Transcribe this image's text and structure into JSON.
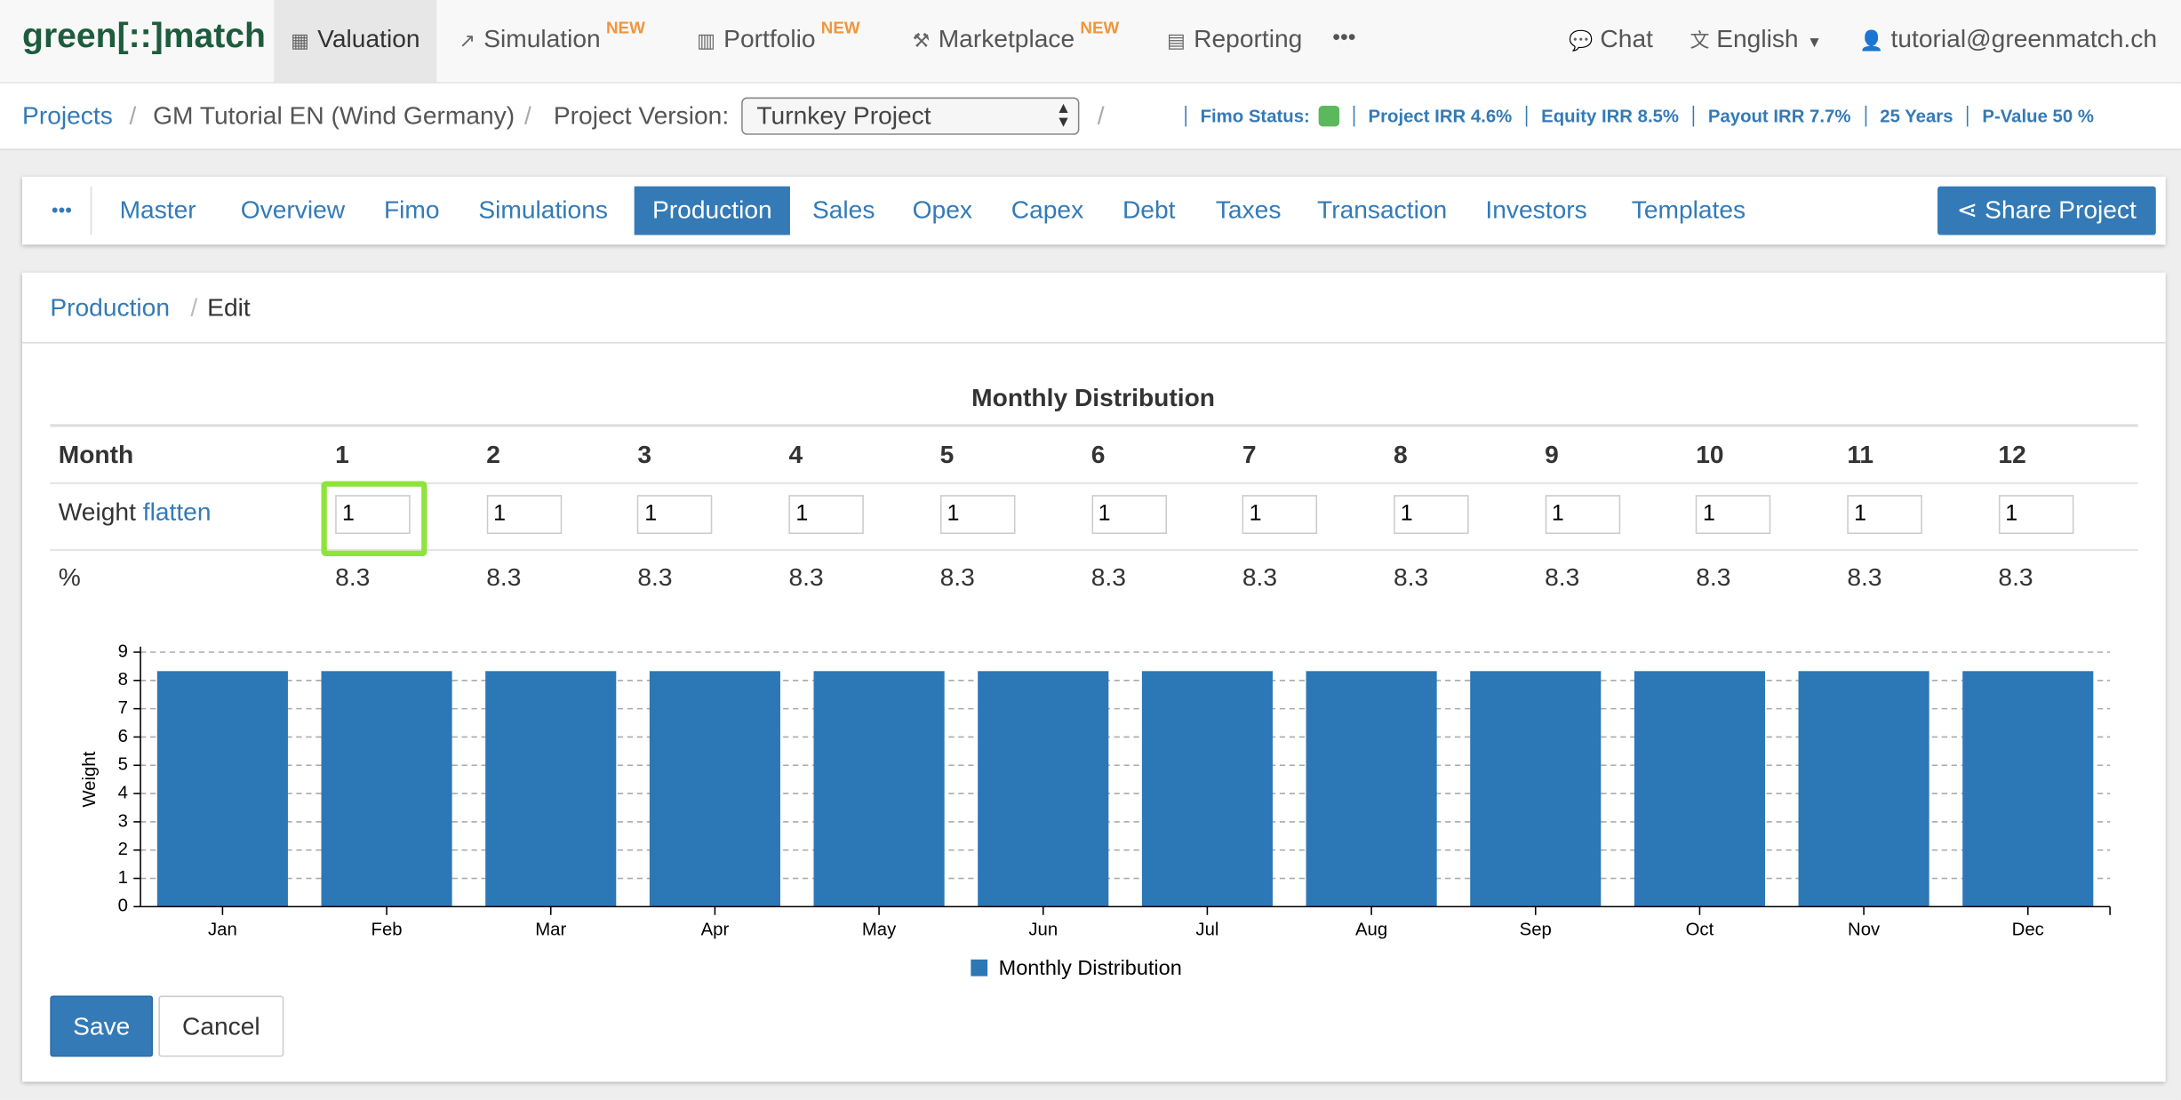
{
  "navbar": {
    "logo": "green[::]match",
    "items": [
      {
        "label": "Valuation"
      },
      {
        "label": "Simulation",
        "badge": "NEW"
      },
      {
        "label": "Portfolio",
        "badge": "NEW"
      },
      {
        "label": "Marketplace",
        "badge": "NEW"
      },
      {
        "label": "Reporting"
      }
    ],
    "more": "•••",
    "right": [
      "Chat",
      "English",
      "tutorial@greenmatch.ch"
    ]
  },
  "project_bar": {
    "breadcrumb": [
      "Projects",
      "GM Tutorial EN (Wind Germany)"
    ],
    "version_label": "Project Version:",
    "version": "Turnkey Project",
    "status": [
      "Fimo Status:",
      "Project IRR 4.6%",
      "Equity IRR 8.5%",
      "Payout IRR 7.7%",
      "25 Years",
      "P-Value 50 %"
    ]
  },
  "tabs": {
    "more": "•••",
    "items": [
      "Master",
      "Overview",
      "Fimo",
      "Simulations",
      "Production",
      "Sales",
      "Opex",
      "Capex",
      "Debt",
      "Taxes",
      "Transaction",
      "Investors",
      "Templates"
    ],
    "active": 4,
    "share": "Share Project"
  },
  "breadcrumb": [
    "Production",
    "Edit"
  ],
  "table": {
    "title": "Monthly Distribution",
    "header": [
      "Month",
      "1",
      "2",
      "3",
      "4",
      "5",
      "6",
      "7",
      "8",
      "9",
      "10",
      "11",
      "12"
    ],
    "weight_label": "Weight",
    "flatten": "flatten",
    "weights": [
      1,
      1,
      1,
      1,
      1,
      1,
      1,
      1,
      1,
      1,
      1,
      1
    ],
    "percent_label": "%",
    "percents": [
      8.3,
      8.3,
      8.3,
      8.3,
      8.3,
      8.3,
      8.3,
      8.3,
      8.3,
      8.3,
      8.3,
      8.3
    ]
  },
  "chart_data": {
    "type": "bar",
    "y_label": "Weight",
    "categories": [
      "Jan",
      "Feb",
      "Mar",
      "Apr",
      "May",
      "Jun",
      "Jul",
      "Aug",
      "Sep",
      "Oct",
      "Nov",
      "Dec"
    ],
    "series": [
      {
        "name": "Monthly Distribution",
        "color": "#2c77b5",
        "values": [
          8.33,
          8.33,
          8.33,
          8.33,
          8.33,
          8.33,
          8.33,
          8.33,
          8.33,
          8.33,
          8.33,
          8.33
        ]
      }
    ],
    "ylim": [
      0,
      9
    ],
    "yticks": [
      0,
      1,
      2,
      3,
      4,
      5,
      6,
      7,
      8,
      9
    ],
    "grid": true
  },
  "buttons": {
    "save": "Save",
    "cancel": "Cancel"
  }
}
